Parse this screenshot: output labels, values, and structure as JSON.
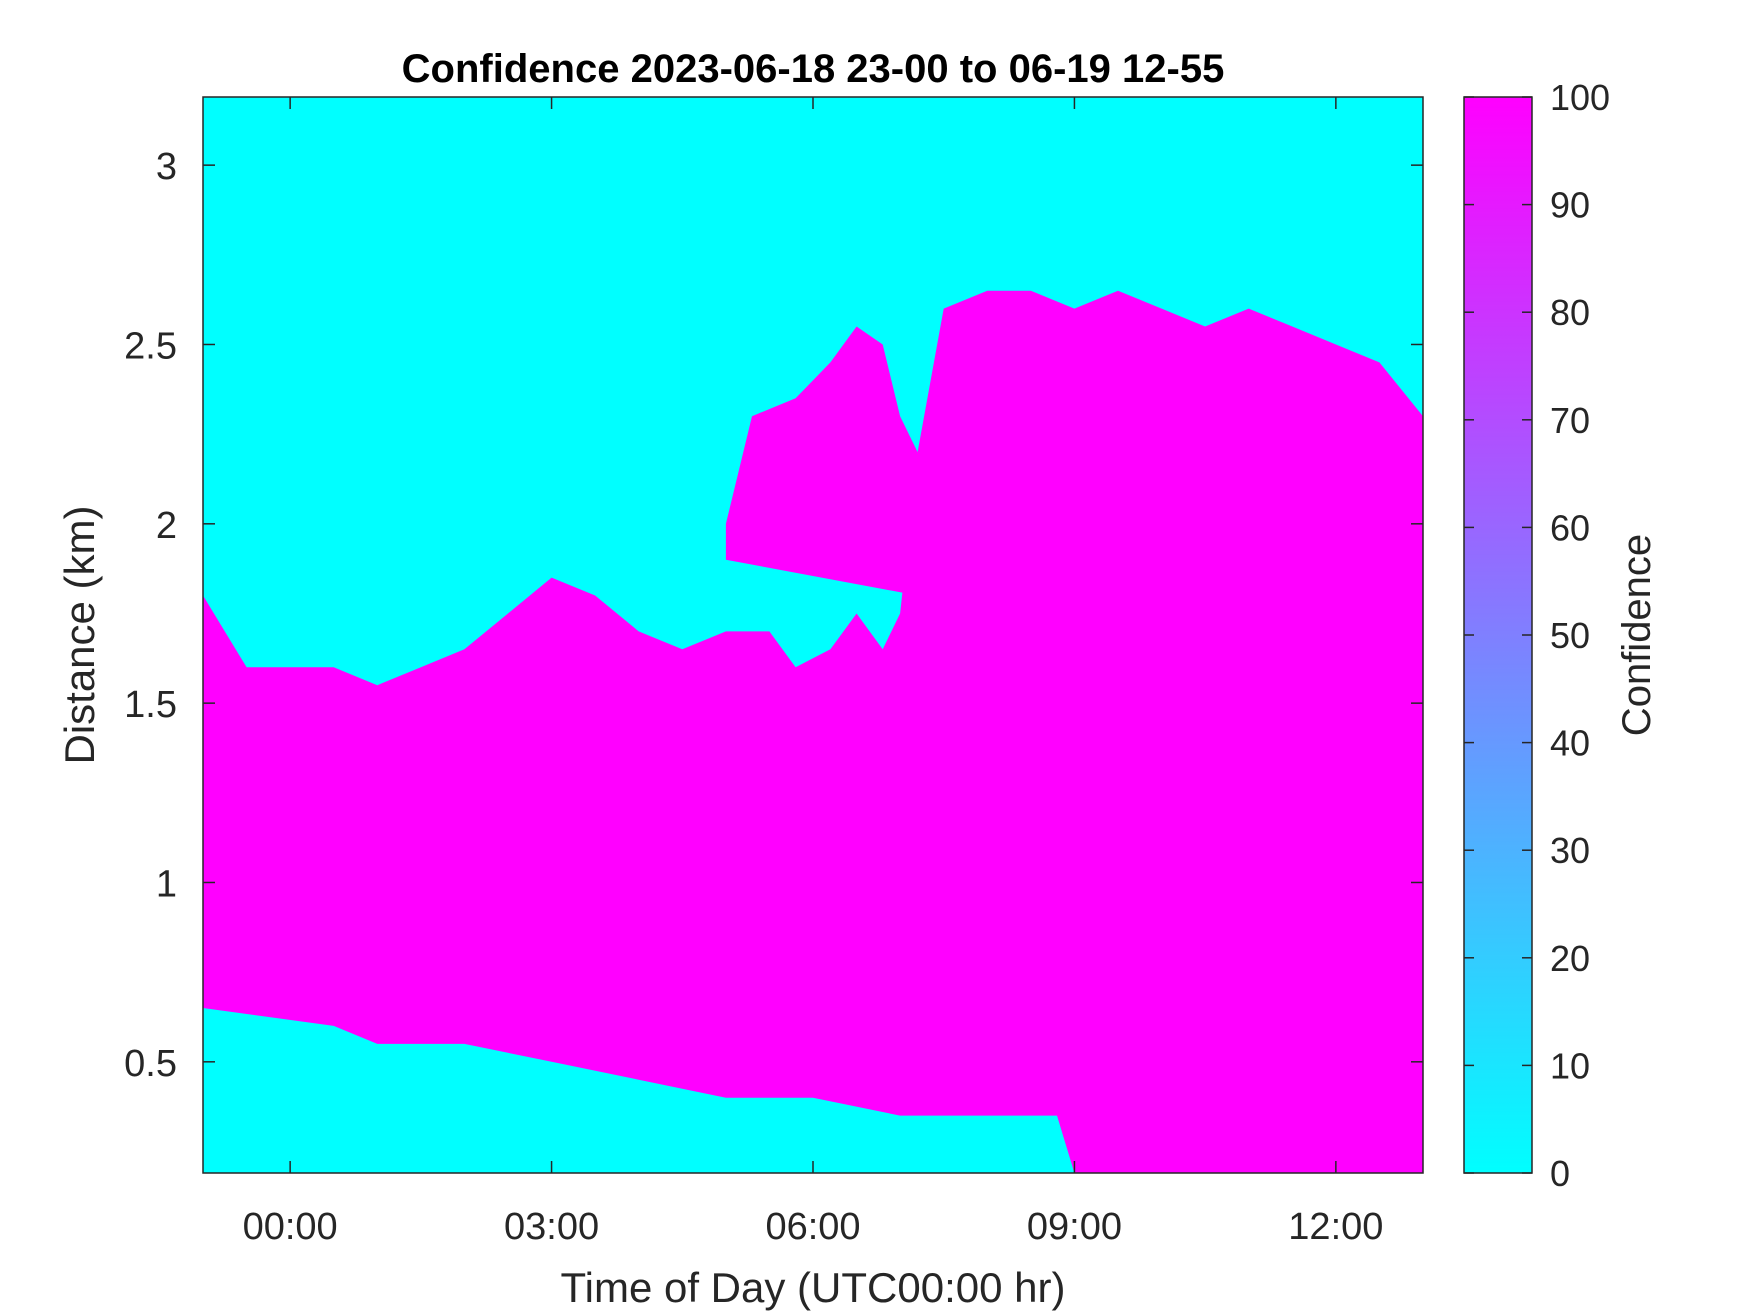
{
  "chart_data": {
    "type": "heatmap",
    "title": "Confidence 2023-06-18 23-00 to 06-19 12-55",
    "xlabel": "Time of Day (UTC00:00 hr)",
    "ylabel": "Distance (km)",
    "xlim": [
      -1.0,
      13.0
    ],
    "ylim": [
      0.19,
      3.19
    ],
    "x_ticks": [
      {
        "value": 0,
        "label": "00:00"
      },
      {
        "value": 3,
        "label": "03:00"
      },
      {
        "value": 6,
        "label": "06:00"
      },
      {
        "value": 9,
        "label": "09:00"
      },
      {
        "value": 12,
        "label": "12:00"
      }
    ],
    "y_ticks": [
      {
        "value": 0.5,
        "label": "0.5"
      },
      {
        "value": 1.0,
        "label": "1"
      },
      {
        "value": 1.5,
        "label": "1.5"
      },
      {
        "value": 2.0,
        "label": "2"
      },
      {
        "value": 2.5,
        "label": "2.5"
      },
      {
        "value": 3.0,
        "label": "3"
      }
    ],
    "colorbar": {
      "label": "Confidence",
      "min": 0,
      "max": 100,
      "min_color": "#00ffff",
      "max_color": "#ff00ff",
      "ticks": [
        {
          "value": 0,
          "label": "0"
        },
        {
          "value": 10,
          "label": "10"
        },
        {
          "value": 20,
          "label": "20"
        },
        {
          "value": 30,
          "label": "30"
        },
        {
          "value": 40,
          "label": "40"
        },
        {
          "value": 50,
          "label": "50"
        },
        {
          "value": 60,
          "label": "60"
        },
        {
          "value": 70,
          "label": "70"
        },
        {
          "value": 80,
          "label": "80"
        },
        {
          "value": 90,
          "label": "90"
        },
        {
          "value": 100,
          "label": "100"
        }
      ]
    },
    "grid": false,
    "regions": [
      {
        "name": "high-confidence-main",
        "confidence": 100,
        "description_note": "",
        "upper_boundary": [
          [
            -1.0,
            1.8
          ],
          [
            -0.5,
            1.6
          ],
          [
            0.5,
            1.6
          ],
          [
            1.0,
            1.55
          ],
          [
            1.5,
            1.6
          ],
          [
            2.0,
            1.65
          ],
          [
            2.5,
            1.75
          ],
          [
            3.0,
            1.85
          ],
          [
            3.5,
            1.8
          ],
          [
            4.0,
            1.7
          ],
          [
            4.5,
            1.65
          ],
          [
            5.0,
            1.7
          ],
          [
            5.5,
            1.7
          ],
          [
            5.8,
            1.6
          ],
          [
            6.2,
            1.65
          ],
          [
            6.5,
            1.75
          ],
          [
            6.8,
            1.65
          ],
          [
            7.0,
            1.75
          ],
          [
            7.2,
            2.2
          ],
          [
            7.5,
            2.6
          ],
          [
            8.0,
            2.65
          ],
          [
            8.5,
            2.65
          ],
          [
            9.0,
            2.6
          ],
          [
            9.5,
            2.65
          ],
          [
            10.0,
            2.6
          ],
          [
            10.5,
            2.55
          ],
          [
            11.0,
            2.6
          ],
          [
            11.5,
            2.55
          ],
          [
            12.0,
            2.5
          ],
          [
            12.5,
            2.45
          ],
          [
            13.0,
            2.3
          ]
        ],
        "lower_boundary": [
          [
            -1.0,
            0.65
          ],
          [
            0.5,
            0.6
          ],
          [
            1.0,
            0.55
          ],
          [
            2.0,
            0.55
          ],
          [
            3.0,
            0.5
          ],
          [
            4.0,
            0.45
          ],
          [
            5.0,
            0.4
          ],
          [
            6.0,
            0.4
          ],
          [
            7.0,
            0.35
          ],
          [
            8.0,
            0.35
          ],
          [
            8.8,
            0.35
          ],
          [
            9.0,
            0.19
          ]
        ]
      },
      {
        "name": "high-confidence-midlevel",
        "confidence": 100,
        "lower_boundary": [
          [
            5.0,
            2.0
          ],
          [
            5.3,
            2.3
          ],
          [
            5.8,
            2.35
          ],
          [
            6.2,
            2.45
          ],
          [
            6.5,
            2.55
          ],
          [
            6.8,
            2.5
          ],
          [
            7.0,
            2.3
          ],
          [
            7.2,
            2.2
          ]
        ]
      }
    ]
  }
}
